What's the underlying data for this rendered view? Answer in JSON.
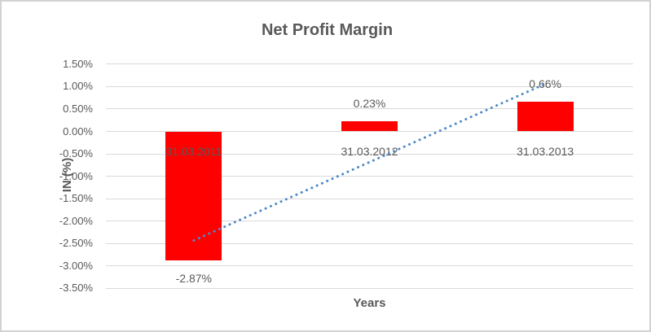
{
  "chart_data": {
    "type": "bar",
    "title": "Net Profit Margin",
    "xlabel": "Years",
    "ylabel": "IN (%)",
    "categories": [
      "31.03.2011",
      "31.03.2012",
      "31.03.2013"
    ],
    "values": [
      -2.87,
      0.23,
      0.66
    ],
    "data_labels": [
      "-2.87%",
      "0.23%",
      "0.66%"
    ],
    "yticks": [
      {
        "value": 1.5,
        "label": "1.50%"
      },
      {
        "value": 1.0,
        "label": "1.00%"
      },
      {
        "value": 0.5,
        "label": "0.50%"
      },
      {
        "value": 0.0,
        "label": "0.00%"
      },
      {
        "value": -0.5,
        "label": "-0.50%"
      },
      {
        "value": -1.0,
        "label": "-1.00%"
      },
      {
        "value": -1.5,
        "label": "-1.50%"
      },
      {
        "value": -2.0,
        "label": "-2.00%"
      },
      {
        "value": -2.5,
        "label": "-2.50%"
      },
      {
        "value": -3.0,
        "label": "-3.00%"
      },
      {
        "value": -3.5,
        "label": "-3.50%"
      }
    ],
    "ylim": [
      -3.5,
      1.5
    ],
    "grid": true,
    "legend": "none",
    "bar_color": "#FF0000",
    "text_color": "#595959",
    "gridline_color": "#D9D9D9",
    "trendline": {
      "style": "dotted",
      "color": "#4E8AC9",
      "start_value": -2.43,
      "end_value": 1.06
    }
  }
}
